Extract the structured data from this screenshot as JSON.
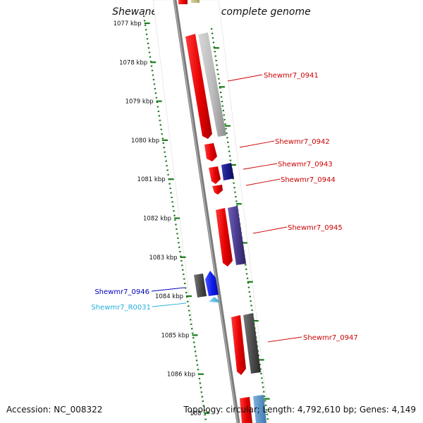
{
  "title": "Shewanella sp. MR-7, complete genome",
  "accession": "Accession: NC_008322",
  "topology": "Topology: circular; Length: 4,792,610 bp; Genes: 4,149",
  "kbp_labels": [
    "1077 kbp",
    "1078 kbp",
    "1079 kbp",
    "1080 kbp",
    "1081 kbp",
    "1082 kbp",
    "1083 kbp",
    "1084 kbp",
    "1085 kbp",
    "1086 kbp",
    "108"
  ],
  "gene_labels": [
    {
      "text": "Shewmr7_0941",
      "color": "#cc0000"
    },
    {
      "text": "Shewmr7_0942",
      "color": "#cc0000"
    },
    {
      "text": "Shewmr7_0943",
      "color": "#cc0000"
    },
    {
      "text": "Shewmr7_0944",
      "color": "#cc0000"
    },
    {
      "text": "Shewmr7_0945",
      "color": "#cc0000"
    },
    {
      "text": "Shewmr7_0946",
      "color": "#0000bb"
    },
    {
      "text": "Shewmr7_R0031",
      "color": "#22b0dd"
    },
    {
      "text": "Shewmr7_0947",
      "color": "#cc0000"
    }
  ],
  "colors": {
    "backbone": "#7a7a7a",
    "ruler": "#1a7a1a",
    "cds": "#ee1111",
    "cds_mate": "#bcbcbc",
    "dark_gene": "#4d4d4d",
    "purple_gene": "#4b3b8f",
    "navy_gene": "#1b1b8a",
    "blue_gene": "#1020ee",
    "rna": "#55c4ee"
  }
}
